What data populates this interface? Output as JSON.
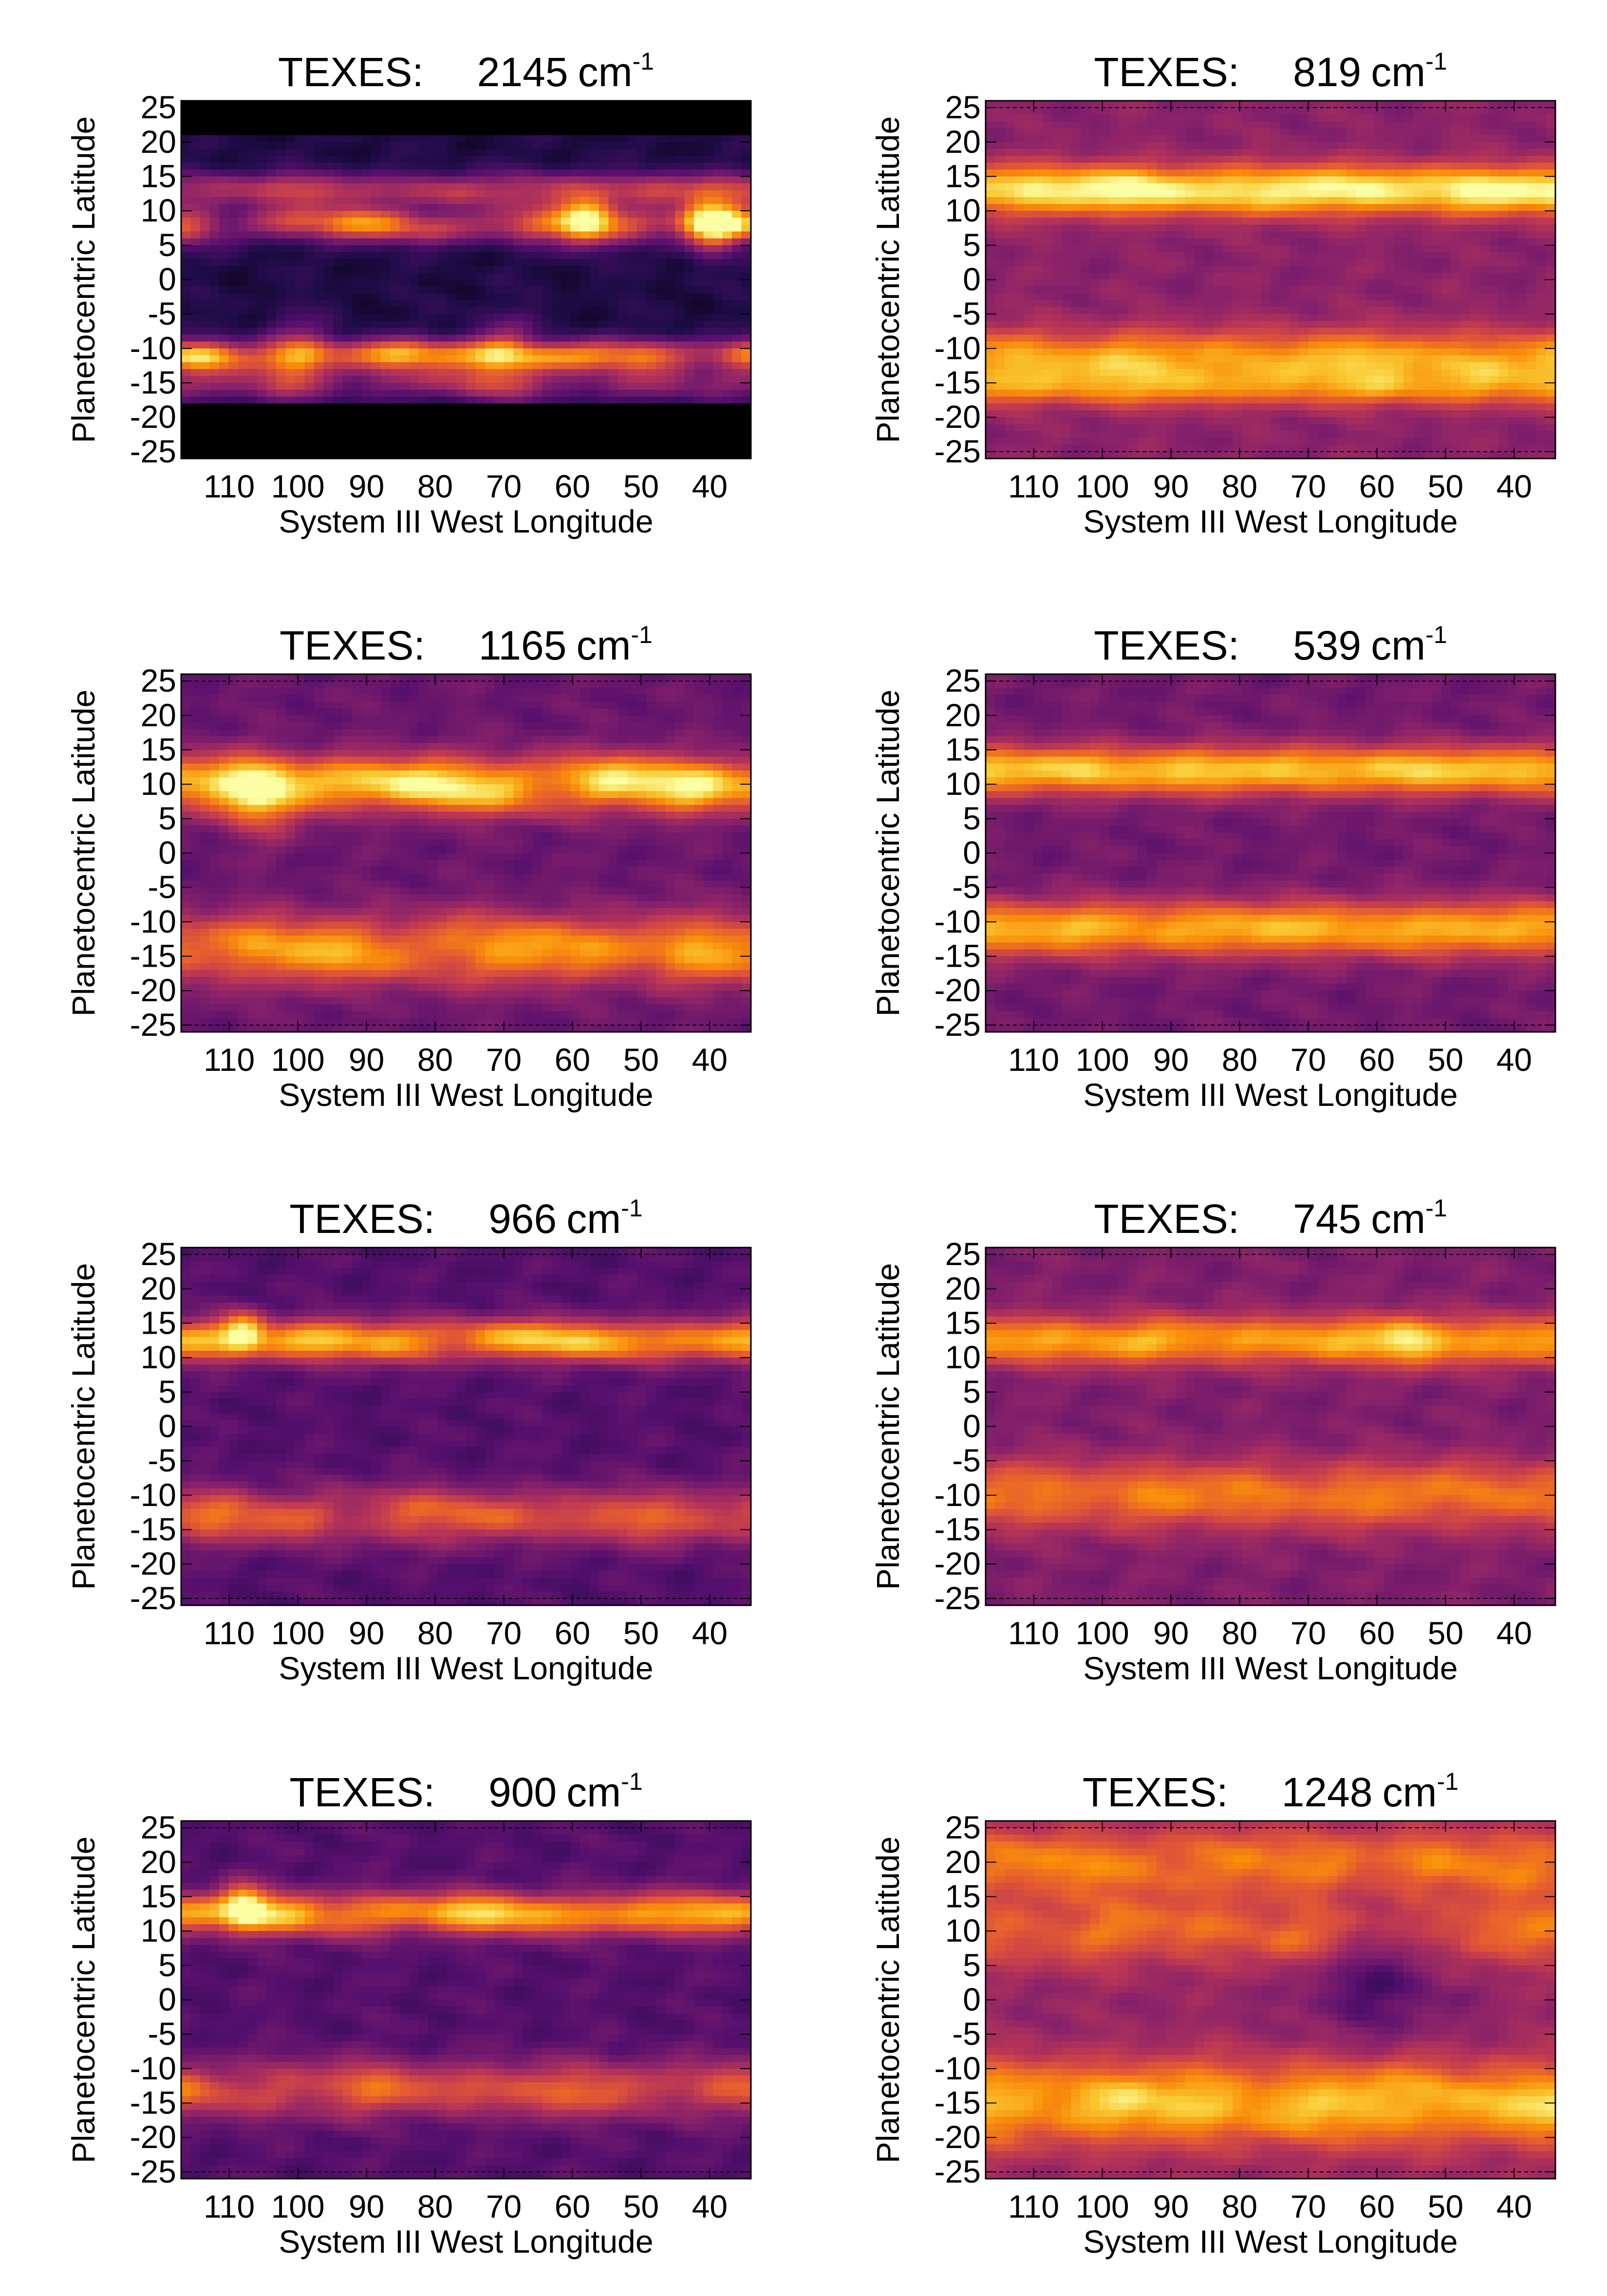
{
  "colors": {
    "background": "#ffffff",
    "text": "#000000",
    "colormap": [
      "#000004",
      "#1f0c48",
      "#550f6d",
      "#88226a",
      "#ba3655",
      "#e35933",
      "#f98c0a",
      "#f9c932",
      "#fcffa4"
    ]
  },
  "chart_data": [
    {
      "type": "heatmap",
      "title_prefix": "TEXES:",
      "wavenumber": "2145",
      "unit_base": "cm",
      "unit_exp": "-1",
      "xlabel": "System III West Longitude",
      "ylabel": "Planetocentric Latitude",
      "xlim": [
        117,
        34
      ],
      "ylim": [
        -26,
        26
      ],
      "xticks": [
        "110",
        "100",
        "90",
        "80",
        "70",
        "60",
        "50",
        "40"
      ],
      "yticks": [
        "25",
        "20",
        "15",
        "10",
        "5",
        "0",
        "-5",
        "-10",
        "-15",
        "-20",
        "-25"
      ],
      "masked_lat": [
        [
          -26,
          -18.5
        ],
        [
          21.5,
          26
        ]
      ],
      "bands": [
        {
          "lat": 13,
          "width": 2.5,
          "amp": 0.35,
          "lon_mod": 0.3
        },
        {
          "lat": 8,
          "width": 2.5,
          "amp": 0.45,
          "lon_mod": 0.6
        },
        {
          "lat": -11,
          "width": 2.2,
          "amp": 0.55,
          "lon_mod": 0.5
        },
        {
          "lat": -15,
          "width": 2.5,
          "amp": 0.25,
          "lon_mod": 0.4
        }
      ],
      "base": 0.12,
      "spots": [
        {
          "lon": 58,
          "lat": 9,
          "amp": 0.55,
          "size": 4
        },
        {
          "lon": 40,
          "lat": 8,
          "amp": 0.6,
          "size": 4
        },
        {
          "lon": 70,
          "lat": -11,
          "amp": 0.35,
          "size": 5
        },
        {
          "lon": 100,
          "lat": -11,
          "amp": 0.3,
          "size": 5
        }
      ]
    },
    {
      "type": "heatmap",
      "title_prefix": "TEXES:",
      "wavenumber": "819",
      "unit_base": "cm",
      "unit_exp": "-1",
      "xlabel": "System III West Longitude",
      "ylabel": "Planetocentric Latitude",
      "xlim": [
        117,
        34
      ],
      "ylim": [
        -26,
        26
      ],
      "xticks": [
        "110",
        "100",
        "90",
        "80",
        "70",
        "60",
        "50",
        "40"
      ],
      "yticks": [
        "25",
        "20",
        "15",
        "10",
        "5",
        "0",
        "-5",
        "-10",
        "-15",
        "-20",
        "-25"
      ],
      "masked_lat": [],
      "bands": [
        {
          "lat": 13,
          "width": 3.5,
          "amp": 0.6,
          "lon_mod": 0.15
        },
        {
          "lat": -12,
          "width": 4.5,
          "amp": 0.45,
          "lon_mod": 0.15
        },
        {
          "lat": -16,
          "width": 2.5,
          "amp": 0.2,
          "lon_mod": 0.3
        }
      ],
      "base": 0.38,
      "spots": []
    },
    {
      "type": "heatmap",
      "title_prefix": "TEXES:",
      "wavenumber": "1165",
      "unit_base": "cm",
      "unit_exp": "-1",
      "xlabel": "System III West Longitude",
      "ylabel": "Planetocentric Latitude",
      "xlim": [
        117,
        34
      ],
      "ylim": [
        -26,
        26
      ],
      "xticks": [
        "110",
        "100",
        "90",
        "80",
        "70",
        "60",
        "50",
        "40"
      ],
      "yticks": [
        "25",
        "20",
        "15",
        "10",
        "5",
        "0",
        "-5",
        "-10",
        "-15",
        "-20",
        "-25"
      ],
      "masked_lat": [],
      "bands": [
        {
          "lat": 10,
          "width": 4,
          "amp": 0.6,
          "lon_mod": 0.35
        },
        {
          "lat": -14,
          "width": 5,
          "amp": 0.45,
          "lon_mod": 0.3
        }
      ],
      "base": 0.3,
      "spots": [
        {
          "lon": 105,
          "lat": 7,
          "amp": 0.25,
          "size": 5
        }
      ]
    },
    {
      "type": "heatmap",
      "title_prefix": "TEXES:",
      "wavenumber": "539",
      "unit_base": "cm",
      "unit_exp": "-1",
      "xlabel": "System III West Longitude",
      "ylabel": "Planetocentric Latitude",
      "xlim": [
        117,
        34
      ],
      "ylim": [
        -26,
        26
      ],
      "xticks": [
        "110",
        "100",
        "90",
        "80",
        "70",
        "60",
        "50",
        "40"
      ],
      "yticks": [
        "25",
        "20",
        "15",
        "10",
        "5",
        "0",
        "-5",
        "-10",
        "-15",
        "-20",
        "-25"
      ],
      "masked_lat": [],
      "bands": [
        {
          "lat": 12,
          "width": 3.5,
          "amp": 0.55,
          "lon_mod": 0.08
        },
        {
          "lat": -11,
          "width": 4,
          "amp": 0.5,
          "lon_mod": 0.1
        }
      ],
      "base": 0.32,
      "spots": []
    },
    {
      "type": "heatmap",
      "title_prefix": "TEXES:",
      "wavenumber": "966",
      "unit_base": "cm",
      "unit_exp": "-1",
      "xlabel": "System III West Longitude",
      "ylabel": "Planetocentric Latitude",
      "xlim": [
        117,
        34
      ],
      "ylim": [
        -26,
        26
      ],
      "xticks": [
        "110",
        "100",
        "90",
        "80",
        "70",
        "60",
        "50",
        "40"
      ],
      "yticks": [
        "25",
        "20",
        "15",
        "10",
        "5",
        "0",
        "-5",
        "-10",
        "-15",
        "-20",
        "-25"
      ],
      "masked_lat": [],
      "bands": [
        {
          "lat": 12.5,
          "width": 3,
          "amp": 0.55,
          "lon_mod": 0.3
        },
        {
          "lat": -13,
          "width": 4,
          "amp": 0.35,
          "lon_mod": 0.35
        }
      ],
      "base": 0.25,
      "spots": [
        {
          "lon": 108,
          "lat": 14,
          "amp": 0.4,
          "size": 3
        }
      ]
    },
    {
      "type": "heatmap",
      "title_prefix": "TEXES:",
      "wavenumber": "745",
      "unit_base": "cm",
      "unit_exp": "-1",
      "xlabel": "System III West Longitude",
      "ylabel": "Planetocentric Latitude",
      "xlim": [
        117,
        34
      ],
      "ylim": [
        -26,
        26
      ],
      "xticks": [
        "110",
        "100",
        "90",
        "80",
        "70",
        "60",
        "50",
        "40"
      ],
      "yticks": [
        "25",
        "20",
        "15",
        "10",
        "5",
        "0",
        "-5",
        "-10",
        "-15",
        "-20",
        "-25"
      ],
      "masked_lat": [],
      "bands": [
        {
          "lat": 12.5,
          "width": 3.5,
          "amp": 0.45,
          "lon_mod": 0.15
        },
        {
          "lat": -10,
          "width": 5,
          "amp": 0.35,
          "lon_mod": 0.15
        }
      ],
      "base": 0.35,
      "spots": [
        {
          "lon": 55,
          "lat": 12,
          "amp": 0.2,
          "size": 4
        }
      ]
    },
    {
      "type": "heatmap",
      "title_prefix": "TEXES:",
      "wavenumber": "900",
      "unit_base": "cm",
      "unit_exp": "-1",
      "xlabel": "System III West Longitude",
      "ylabel": "Planetocentric Latitude",
      "xlim": [
        117,
        34
      ],
      "ylim": [
        -26,
        26
      ],
      "xticks": [
        "110",
        "100",
        "90",
        "80",
        "70",
        "60",
        "50",
        "40"
      ],
      "yticks": [
        "25",
        "20",
        "15",
        "10",
        "5",
        "0",
        "-5",
        "-10",
        "-15",
        "-20",
        "-25"
      ],
      "masked_lat": [],
      "bands": [
        {
          "lat": 12.5,
          "width": 3,
          "amp": 0.55,
          "lon_mod": 0.3
        },
        {
          "lat": -13,
          "width": 4,
          "amp": 0.35,
          "lon_mod": 0.35
        }
      ],
      "base": 0.25,
      "spots": [
        {
          "lon": 108,
          "lat": 14,
          "amp": 0.45,
          "size": 3
        }
      ]
    },
    {
      "type": "heatmap",
      "title_prefix": "TEXES:",
      "wavenumber": "1248",
      "unit_base": "cm",
      "unit_exp": "-1",
      "xlabel": "System III West Longitude",
      "ylabel": "Planetocentric Latitude",
      "xlim": [
        117,
        34
      ],
      "ylim": [
        -26,
        26
      ],
      "xticks": [
        "110",
        "100",
        "90",
        "80",
        "70",
        "60",
        "50",
        "40"
      ],
      "yticks": [
        "25",
        "20",
        "15",
        "10",
        "5",
        "0",
        "-5",
        "-10",
        "-15",
        "-20",
        "-25"
      ],
      "masked_lat": [],
      "bands": [
        {
          "lat": 20,
          "width": 5,
          "amp": 0.3,
          "lon_mod": 0.2
        },
        {
          "lat": 10,
          "width": 5,
          "amp": 0.25,
          "lon_mod": 0.3
        },
        {
          "lat": -15,
          "width": 6,
          "amp": 0.45,
          "lon_mod": 0.2
        }
      ],
      "base": 0.4,
      "spots": [
        {
          "lon": 60,
          "lat": 5,
          "amp": -0.2,
          "size": 10
        }
      ]
    }
  ]
}
